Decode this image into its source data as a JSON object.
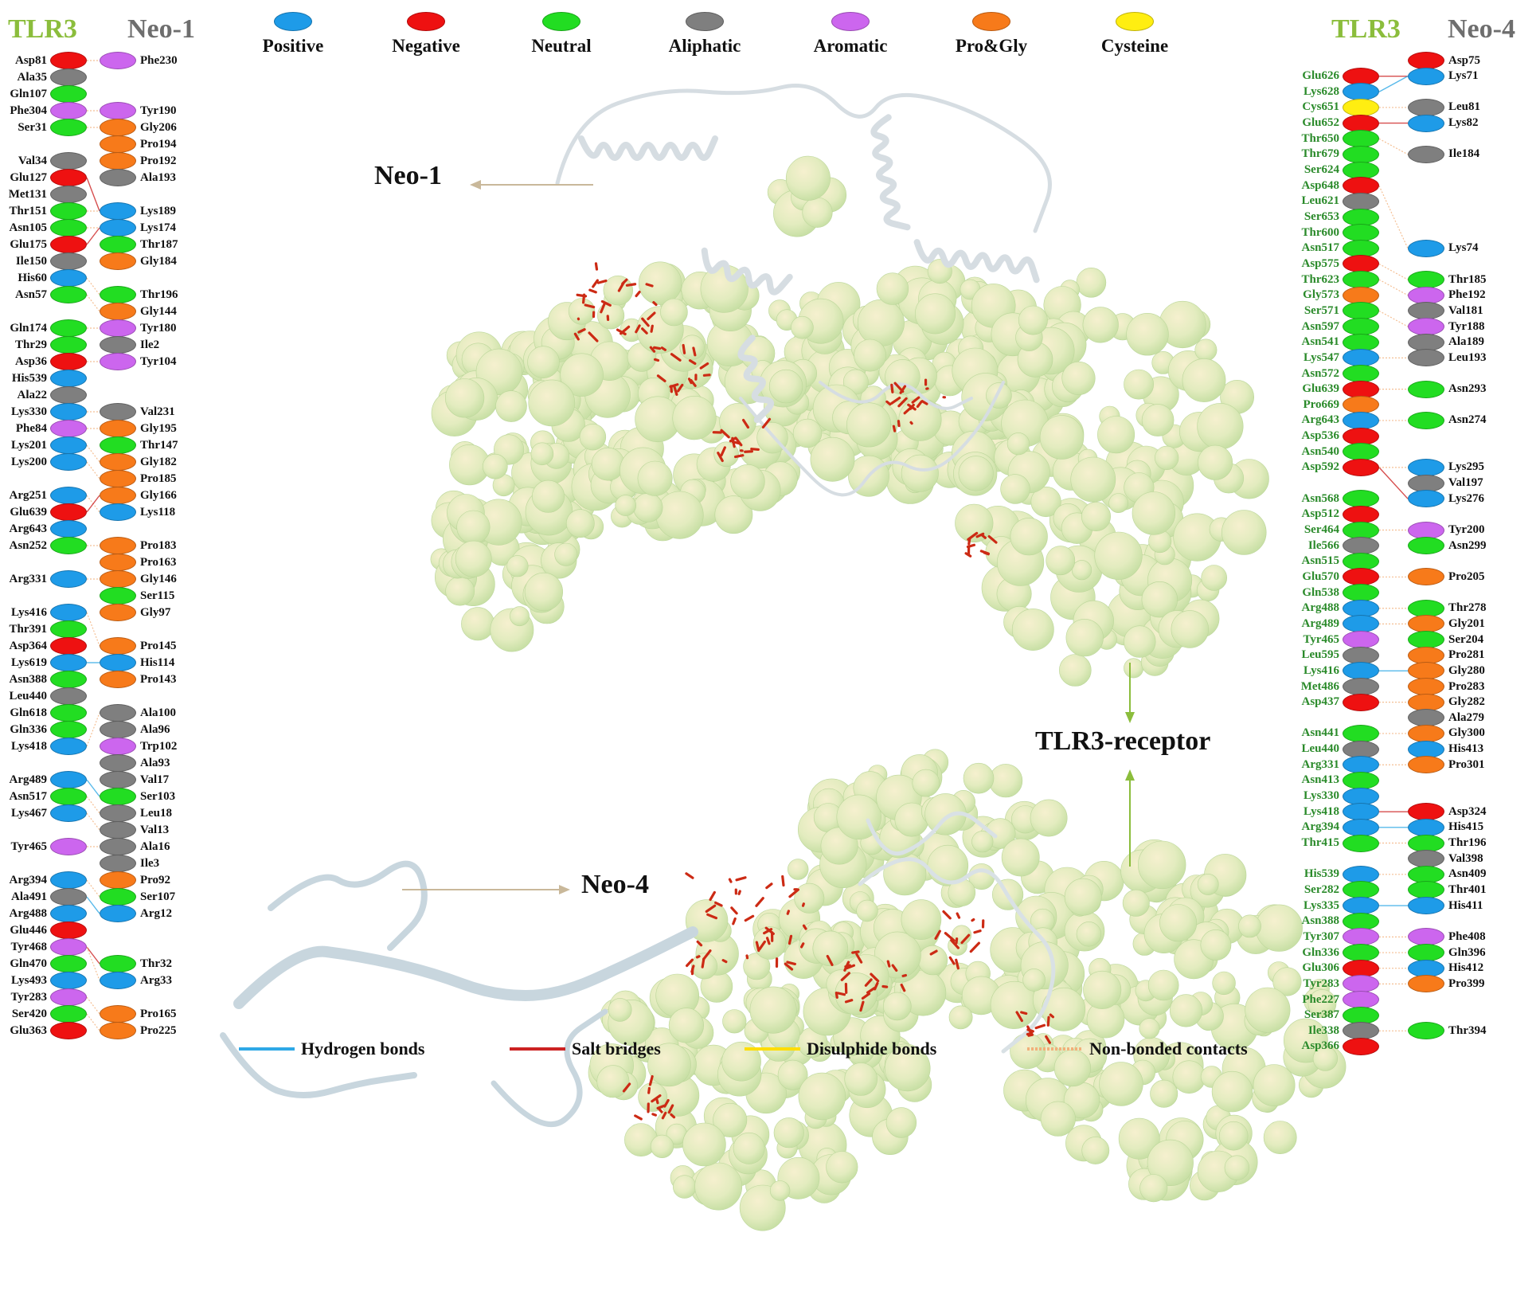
{
  "headers": {
    "tlr3": "TLR3",
    "neo1": "Neo-1",
    "neo4": "Neo-4"
  },
  "legend": [
    {
      "label": "Positive",
      "color": "#1e9be8"
    },
    {
      "label": "Negative",
      "color": "#ee1111"
    },
    {
      "label": "Neutral",
      "color": "#22dd22"
    },
    {
      "label": "Aliphatic",
      "color": "#7f7f7f"
    },
    {
      "label": "Aromatic",
      "color": "#cc66ee"
    },
    {
      "label": "Pro&Gly",
      "color": "#f77a1a"
    },
    {
      "label": "Cysteine",
      "color": "#ffee11"
    }
  ],
  "bond_legend": [
    {
      "label": "Hydrogen bonds",
      "color": "#2ea8e6"
    },
    {
      "label": "Salt bridges",
      "color": "#cc2222"
    },
    {
      "label": "Disulphide bonds",
      "color": "#ffdd00"
    },
    {
      "label": "Non-bonded contacts",
      "color": "#f2b07a"
    }
  ],
  "labels": {
    "neo1": "Neo-1",
    "neo4": "Neo-4",
    "receptor": "TLR3-receptor"
  },
  "left_tlr3": [
    {
      "r": 0,
      "name": "Asp81",
      "type": "neg"
    },
    {
      "r": 1,
      "name": "Ala35",
      "type": "ali"
    },
    {
      "r": 2,
      "name": "Gln107",
      "type": "neu"
    },
    {
      "r": 3,
      "name": "Phe304",
      "type": "aro"
    },
    {
      "r": 4,
      "name": "Ser31",
      "type": "neu"
    },
    {
      "r": 6,
      "name": "Val34",
      "type": "ali"
    },
    {
      "r": 7,
      "name": "Glu127",
      "type": "neg"
    },
    {
      "r": 8,
      "name": "Met131",
      "type": "ali"
    },
    {
      "r": 9,
      "name": "Thr151",
      "type": "neu"
    },
    {
      "r": 10,
      "name": "Asn105",
      "type": "neu"
    },
    {
      "r": 11,
      "name": "Glu175",
      "type": "neg"
    },
    {
      "r": 12,
      "name": "Ile150",
      "type": "ali"
    },
    {
      "r": 13,
      "name": "His60",
      "type": "pos"
    },
    {
      "r": 14,
      "name": "Asn57",
      "type": "neu"
    },
    {
      "r": 16,
      "name": "Gln174",
      "type": "neu"
    },
    {
      "r": 17,
      "name": "Thr29",
      "type": "neu"
    },
    {
      "r": 18,
      "name": "Asp36",
      "type": "neg"
    },
    {
      "r": 19,
      "name": "His539",
      "type": "pos"
    },
    {
      "r": 20,
      "name": "Ala22",
      "type": "ali"
    },
    {
      "r": 21,
      "name": "Lys330",
      "type": "pos"
    },
    {
      "r": 22,
      "name": "Phe84",
      "type": "aro"
    },
    {
      "r": 23,
      "name": "Lys201",
      "type": "pos"
    },
    {
      "r": 24,
      "name": "Lys200",
      "type": "pos"
    },
    {
      "r": 26,
      "name": "Arg251",
      "type": "pos"
    },
    {
      "r": 27,
      "name": "Glu639",
      "type": "neg"
    },
    {
      "r": 28,
      "name": "Arg643",
      "type": "pos"
    },
    {
      "r": 29,
      "name": "Asn252",
      "type": "neu"
    },
    {
      "r": 31,
      "name": "Arg331",
      "type": "pos"
    },
    {
      "r": 33,
      "name": "Lys416",
      "type": "pos"
    },
    {
      "r": 34,
      "name": "Thr391",
      "type": "neu"
    },
    {
      "r": 35,
      "name": "Asp364",
      "type": "neg"
    },
    {
      "r": 36,
      "name": "Lys619",
      "type": "pos"
    },
    {
      "r": 37,
      "name": "Asn388",
      "type": "neu"
    },
    {
      "r": 38,
      "name": "Leu440",
      "type": "ali"
    },
    {
      "r": 39,
      "name": "Gln618",
      "type": "neu"
    },
    {
      "r": 40,
      "name": "Gln336",
      "type": "neu"
    },
    {
      "r": 41,
      "name": "Lys418",
      "type": "pos"
    },
    {
      "r": 43,
      "name": "Arg489",
      "type": "pos"
    },
    {
      "r": 44,
      "name": "Asn517",
      "type": "neu"
    },
    {
      "r": 45,
      "name": "Lys467",
      "type": "pos"
    },
    {
      "r": 47,
      "name": "Tyr465",
      "type": "aro"
    },
    {
      "r": 49,
      "name": "Arg394",
      "type": "pos"
    },
    {
      "r": 50,
      "name": "Ala491",
      "type": "ali"
    },
    {
      "r": 51,
      "name": "Arg488",
      "type": "pos"
    },
    {
      "r": 52,
      "name": "Glu446",
      "type": "neg"
    },
    {
      "r": 53,
      "name": "Tyr468",
      "type": "aro"
    },
    {
      "r": 54,
      "name": "Gln470",
      "type": "neu"
    },
    {
      "r": 55,
      "name": "Lys493",
      "type": "pos"
    },
    {
      "r": 56,
      "name": "Tyr283",
      "type": "aro"
    },
    {
      "r": 57,
      "name": "Ser420",
      "type": "neu"
    },
    {
      "r": 58,
      "name": "Glu363",
      "type": "neg"
    }
  ],
  "left_neo1": [
    {
      "r": 0,
      "name": "Phe230",
      "type": "aro"
    },
    {
      "r": 3,
      "name": "Tyr190",
      "type": "aro"
    },
    {
      "r": 4,
      "name": "Gly206",
      "type": "pg"
    },
    {
      "r": 5,
      "name": "Pro194",
      "type": "pg"
    },
    {
      "r": 6,
      "name": "Pro192",
      "type": "pg"
    },
    {
      "r": 7,
      "name": "Ala193",
      "type": "ali"
    },
    {
      "r": 9,
      "name": "Lys189",
      "type": "pos"
    },
    {
      "r": 10,
      "name": "Lys174",
      "type": "pos"
    },
    {
      "r": 11,
      "name": "Thr187",
      "type": "neu"
    },
    {
      "r": 12,
      "name": "Gly184",
      "type": "pg"
    },
    {
      "r": 14,
      "name": "Thr196",
      "type": "neu"
    },
    {
      "r": 15,
      "name": "Gly144",
      "type": "pg"
    },
    {
      "r": 16,
      "name": "Tyr180",
      "type": "aro"
    },
    {
      "r": 17,
      "name": "Ile2",
      "type": "ali"
    },
    {
      "r": 18,
      "name": "Tyr104",
      "type": "aro"
    },
    {
      "r": 21,
      "name": "Val231",
      "type": "ali"
    },
    {
      "r": 22,
      "name": "Gly195",
      "type": "pg"
    },
    {
      "r": 23,
      "name": "Thr147",
      "type": "neu"
    },
    {
      "r": 24,
      "name": "Gly182",
      "type": "pg"
    },
    {
      "r": 25,
      "name": "Pro185",
      "type": "pg"
    },
    {
      "r": 26,
      "name": "Gly166",
      "type": "pg"
    },
    {
      "r": 27,
      "name": "Lys118",
      "type": "pos"
    },
    {
      "r": 29,
      "name": "Pro183",
      "type": "pg"
    },
    {
      "r": 30,
      "name": "Pro163",
      "type": "pg"
    },
    {
      "r": 31,
      "name": "Gly146",
      "type": "pg"
    },
    {
      "r": 32,
      "name": "Ser115",
      "type": "neu"
    },
    {
      "r": 33,
      "name": "Gly97",
      "type": "pg"
    },
    {
      "r": 35,
      "name": "Pro145",
      "type": "pg"
    },
    {
      "r": 36,
      "name": "His114",
      "type": "pos"
    },
    {
      "r": 37,
      "name": "Pro143",
      "type": "pg"
    },
    {
      "r": 39,
      "name": "Ala100",
      "type": "ali"
    },
    {
      "r": 40,
      "name": "Ala96",
      "type": "ali"
    },
    {
      "r": 41,
      "name": "Trp102",
      "type": "aro"
    },
    {
      "r": 42,
      "name": "Ala93",
      "type": "ali"
    },
    {
      "r": 43,
      "name": "Val17",
      "type": "ali"
    },
    {
      "r": 44,
      "name": "Ser103",
      "type": "neu"
    },
    {
      "r": 45,
      "name": "Leu18",
      "type": "ali"
    },
    {
      "r": 46,
      "name": "Val13",
      "type": "ali"
    },
    {
      "r": 47,
      "name": "Ala16",
      "type": "ali"
    },
    {
      "r": 48,
      "name": "Ile3",
      "type": "ali"
    },
    {
      "r": 49,
      "name": "Pro92",
      "type": "pg"
    },
    {
      "r": 50,
      "name": "Ser107",
      "type": "neu"
    },
    {
      "r": 51,
      "name": "Arg12",
      "type": "pos"
    },
    {
      "r": 54,
      "name": "Thr32",
      "type": "neu"
    },
    {
      "r": 55,
      "name": "Arg33",
      "type": "pos"
    },
    {
      "r": 57,
      "name": "Pro165",
      "type": "pg"
    },
    {
      "r": 58,
      "name": "Pro225",
      "type": "pg"
    }
  ],
  "right_tlr3": [
    {
      "r": 1,
      "name": "Glu626",
      "type": "neg"
    },
    {
      "r": 2,
      "name": "Lys628",
      "type": "pos"
    },
    {
      "r": 3,
      "name": "Cys651",
      "type": "cys"
    },
    {
      "r": 4,
      "name": "Glu652",
      "type": "neg"
    },
    {
      "r": 5,
      "name": "Thr650",
      "type": "neu"
    },
    {
      "r": 6,
      "name": "Thr679",
      "type": "neu"
    },
    {
      "r": 7,
      "name": "Ser624",
      "type": "neu"
    },
    {
      "r": 8,
      "name": "Asp648",
      "type": "neg"
    },
    {
      "r": 9,
      "name": "Leu621",
      "type": "ali"
    },
    {
      "r": 10,
      "name": "Ser653",
      "type": "neu"
    },
    {
      "r": 11,
      "name": "Thr600",
      "type": "neu"
    },
    {
      "r": 12,
      "name": "Asn517",
      "type": "neu"
    },
    {
      "r": 13,
      "name": "Asp575",
      "type": "neg"
    },
    {
      "r": 14,
      "name": "Thr623",
      "type": "neu"
    },
    {
      "r": 15,
      "name": "Gly573",
      "type": "pg"
    },
    {
      "r": 16,
      "name": "Ser571",
      "type": "neu"
    },
    {
      "r": 17,
      "name": "Asn597",
      "type": "neu"
    },
    {
      "r": 18,
      "name": "Asn541",
      "type": "neu"
    },
    {
      "r": 19,
      "name": "Lys547",
      "type": "pos"
    },
    {
      "r": 20,
      "name": "Asn572",
      "type": "neu"
    },
    {
      "r": 21,
      "name": "Glu639",
      "type": "neg"
    },
    {
      "r": 22,
      "name": "Pro669",
      "type": "pg"
    },
    {
      "r": 23,
      "name": "Arg643",
      "type": "pos"
    },
    {
      "r": 24,
      "name": "Asp536",
      "type": "neg"
    },
    {
      "r": 25,
      "name": "Asn540",
      "type": "neu"
    },
    {
      "r": 26,
      "name": "Asp592",
      "type": "neg"
    },
    {
      "r": 28,
      "name": "Asn568",
      "type": "neu"
    },
    {
      "r": 29,
      "name": "Asp512",
      "type": "neg"
    },
    {
      "r": 30,
      "name": "Ser464",
      "type": "neu"
    },
    {
      "r": 31,
      "name": "Ile566",
      "type": "ali"
    },
    {
      "r": 32,
      "name": "Asn515",
      "type": "neu"
    },
    {
      "r": 33,
      "name": "Glu570",
      "type": "neg"
    },
    {
      "r": 34,
      "name": "Gln538",
      "type": "neu"
    },
    {
      "r": 35,
      "name": "Arg488",
      "type": "pos"
    },
    {
      "r": 36,
      "name": "Arg489",
      "type": "pos"
    },
    {
      "r": 37,
      "name": "Tyr465",
      "type": "aro"
    },
    {
      "r": 38,
      "name": "Leu595",
      "type": "ali"
    },
    {
      "r": 39,
      "name": "Lys416",
      "type": "pos"
    },
    {
      "r": 40,
      "name": "Met486",
      "type": "ali"
    },
    {
      "r": 41,
      "name": "Asp437",
      "type": "neg"
    },
    {
      "r": 43,
      "name": "Asn441",
      "type": "neu"
    },
    {
      "r": 44,
      "name": "Leu440",
      "type": "ali"
    },
    {
      "r": 45,
      "name": "Arg331",
      "type": "pos"
    },
    {
      "r": 46,
      "name": "Asn413",
      "type": "neu"
    },
    {
      "r": 47,
      "name": "Lys330",
      "type": "pos"
    },
    {
      "r": 48,
      "name": "Lys418",
      "type": "pos"
    },
    {
      "r": 49,
      "name": "Arg394",
      "type": "pos"
    },
    {
      "r": 50,
      "name": "Thr415",
      "type": "neu"
    },
    {
      "r": 52,
      "name": "His539",
      "type": "pos"
    },
    {
      "r": 53,
      "name": "Ser282",
      "type": "neu"
    },
    {
      "r": 54,
      "name": "Lys335",
      "type": "pos"
    },
    {
      "r": 55,
      "name": "Asn388",
      "type": "neu"
    },
    {
      "r": 56,
      "name": "Tyr307",
      "type": "aro"
    },
    {
      "r": 57,
      "name": "Gln336",
      "type": "neu"
    },
    {
      "r": 58,
      "name": "Glu306",
      "type": "neg"
    },
    {
      "r": 59,
      "name": "Tyr283",
      "type": "aro"
    },
    {
      "r": 60,
      "name": "Phe227",
      "type": "aro"
    },
    {
      "r": 61,
      "name": "Ser387",
      "type": "neu"
    },
    {
      "r": 62,
      "name": "Ile338",
      "type": "ali"
    },
    {
      "r": 63,
      "name": "Asp366",
      "type": "neg"
    }
  ],
  "right_neo4": [
    {
      "r": 0,
      "name": "Asp75",
      "type": "neg"
    },
    {
      "r": 1,
      "name": "Lys71",
      "type": "pos"
    },
    {
      "r": 3,
      "name": "Leu81",
      "type": "ali"
    },
    {
      "r": 4,
      "name": "Lys82",
      "type": "pos"
    },
    {
      "r": 6,
      "name": "Ile184",
      "type": "ali"
    },
    {
      "r": 12,
      "name": "Lys74",
      "type": "pos"
    },
    {
      "r": 14,
      "name": "Thr185",
      "type": "neu"
    },
    {
      "r": 15,
      "name": "Phe192",
      "type": "aro"
    },
    {
      "r": 16,
      "name": "Val181",
      "type": "ali"
    },
    {
      "r": 17,
      "name": "Tyr188",
      "type": "aro"
    },
    {
      "r": 18,
      "name": "Ala189",
      "type": "ali"
    },
    {
      "r": 19,
      "name": "Leu193",
      "type": "ali"
    },
    {
      "r": 21,
      "name": "Asn293",
      "type": "neu"
    },
    {
      "r": 23,
      "name": "Asn274",
      "type": "neu"
    },
    {
      "r": 26,
      "name": "Lys295",
      "type": "pos"
    },
    {
      "r": 27,
      "name": "Val197",
      "type": "ali"
    },
    {
      "r": 28,
      "name": "Lys276",
      "type": "pos"
    },
    {
      "r": 30,
      "name": "Tyr200",
      "type": "aro"
    },
    {
      "r": 31,
      "name": "Asn299",
      "type": "neu"
    },
    {
      "r": 33,
      "name": "Pro205",
      "type": "pg"
    },
    {
      "r": 35,
      "name": "Thr278",
      "type": "neu"
    },
    {
      "r": 36,
      "name": "Gly201",
      "type": "pg"
    },
    {
      "r": 37,
      "name": "Ser204",
      "type": "neu"
    },
    {
      "r": 38,
      "name": "Pro281",
      "type": "pg"
    },
    {
      "r": 39,
      "name": "Gly280",
      "type": "pg"
    },
    {
      "r": 40,
      "name": "Pro283",
      "type": "pg"
    },
    {
      "r": 41,
      "name": "Gly282",
      "type": "pg"
    },
    {
      "r": 42,
      "name": "Ala279",
      "type": "ali"
    },
    {
      "r": 43,
      "name": "Gly300",
      "type": "pg"
    },
    {
      "r": 44,
      "name": "His413",
      "type": "pos"
    },
    {
      "r": 45,
      "name": "Pro301",
      "type": "pg"
    },
    {
      "r": 48,
      "name": "Asp324",
      "type": "neg"
    },
    {
      "r": 49,
      "name": "His415",
      "type": "pos"
    },
    {
      "r": 50,
      "name": "Thr196",
      "type": "neu"
    },
    {
      "r": 51,
      "name": "Val398",
      "type": "ali"
    },
    {
      "r": 52,
      "name": "Asn409",
      "type": "neu"
    },
    {
      "r": 53,
      "name": "Thr401",
      "type": "neu"
    },
    {
      "r": 54,
      "name": "His411",
      "type": "pos"
    },
    {
      "r": 56,
      "name": "Phe408",
      "type": "aro"
    },
    {
      "r": 57,
      "name": "Gln396",
      "type": "neu"
    },
    {
      "r": 58,
      "name": "His412",
      "type": "pos"
    },
    {
      "r": 59,
      "name": "Pro399",
      "type": "pg"
    },
    {
      "r": 62,
      "name": "Thr394",
      "type": "neu"
    }
  ]
}
